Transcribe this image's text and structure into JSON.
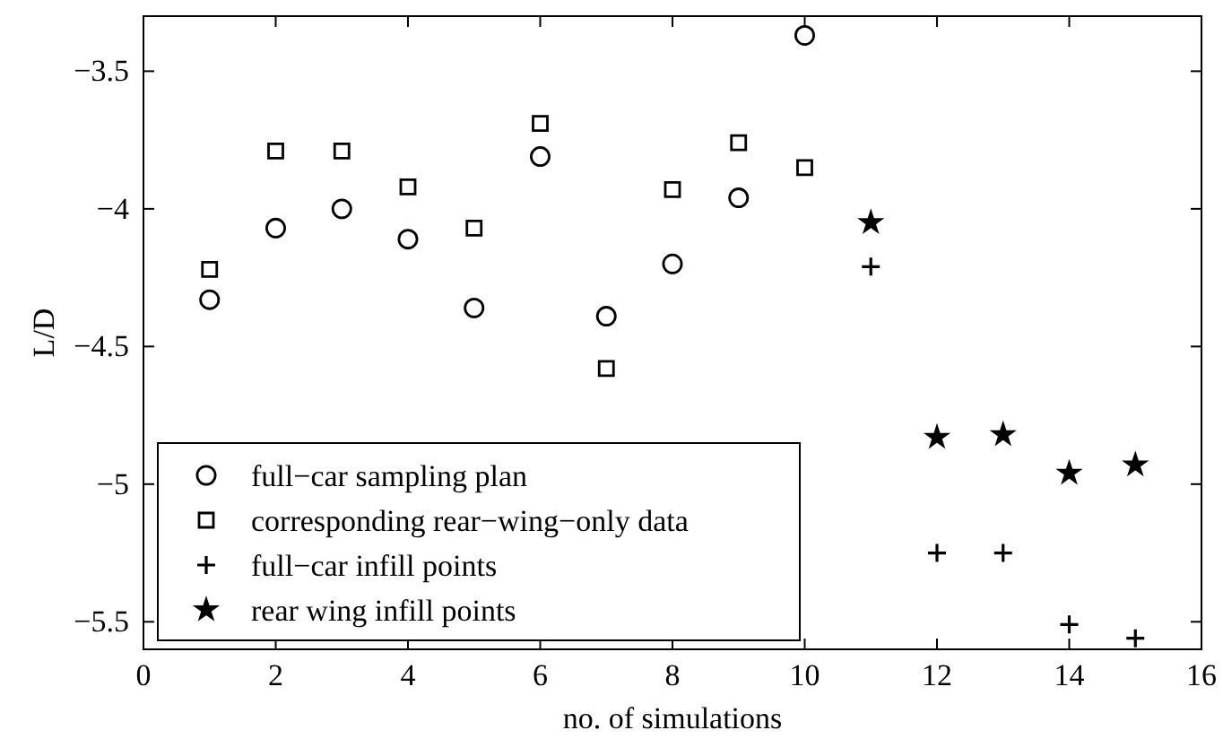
{
  "chart_data": {
    "type": "scatter",
    "xlabel": "no. of simulations",
    "ylabel": "L/D",
    "xlim": [
      0,
      16
    ],
    "ylim": [
      -5.6,
      -3.3
    ],
    "xticks": [
      0,
      2,
      4,
      6,
      8,
      10,
      12,
      14,
      16
    ],
    "yticks": [
      {
        "value": -3.5,
        "label": "−3.5"
      },
      {
        "value": -4,
        "label": "−4"
      },
      {
        "value": -4.5,
        "label": "−4.5"
      },
      {
        "value": -5,
        "label": "−5"
      },
      {
        "value": -5.5,
        "label": "−5.5"
      }
    ],
    "legend": "bottom left",
    "grid": false,
    "series": [
      {
        "name": "full−car sampling plan",
        "color": "#000000",
        "marker": "circle",
        "x": [
          1,
          2,
          3,
          4,
          5,
          6,
          7,
          8,
          9,
          10
        ],
        "values": [
          -4.33,
          -4.07,
          -4.0,
          -4.11,
          -4.36,
          -3.81,
          -4.39,
          -4.2,
          -3.96,
          -3.37
        ]
      },
      {
        "name": "corresponding rear−wing−only data",
        "color": "#000000",
        "marker": "square",
        "x": [
          1,
          2,
          3,
          4,
          5,
          6,
          7,
          8,
          9,
          10
        ],
        "values": [
          -4.22,
          -3.79,
          -3.79,
          -3.92,
          -4.07,
          -3.69,
          -4.58,
          -3.93,
          -3.76,
          -3.85
        ]
      },
      {
        "name": "full−car infill points",
        "color": "#000000",
        "marker": "cross",
        "x": [
          11,
          12,
          13,
          14,
          15
        ],
        "values": [
          -4.21,
          -5.25,
          -5.25,
          -5.51,
          -5.56
        ]
      },
      {
        "name": "rear wing infill points",
        "color": "#000000",
        "marker": "star",
        "x": [
          11,
          12,
          13,
          14,
          15
        ],
        "values": [
          -4.05,
          -4.83,
          -4.82,
          -4.96,
          -4.93
        ]
      }
    ]
  }
}
